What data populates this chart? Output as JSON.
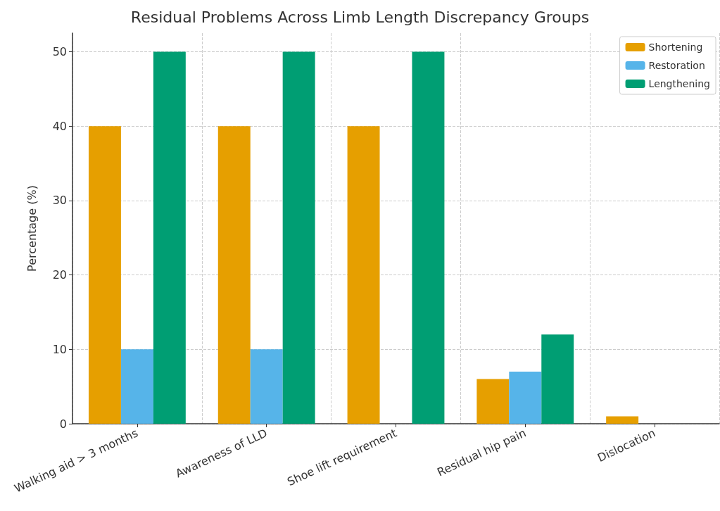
{
  "chart_data": {
    "type": "bar",
    "title": "Residual Problems Across Limb Length Discrepancy Groups",
    "ylabel": "Percentage (%)",
    "categories": [
      "Walking aid > 3 months",
      "Awareness of LLD",
      "Shoe lift requirement",
      "Residual hip pain",
      "Dislocation"
    ],
    "series": [
      {
        "name": "Shortening",
        "color": "#e69f00",
        "values": [
          40,
          40,
          40,
          6,
          1
        ]
      },
      {
        "name": "Restoration",
        "color": "#56b4e9",
        "values": [
          10,
          10,
          0,
          7,
          0
        ]
      },
      {
        "name": "Lengthening",
        "color": "#009e73",
        "values": [
          50,
          50,
          50,
          12,
          0
        ]
      }
    ],
    "ylim": [
      0,
      52.5
    ],
    "yticks": [
      0,
      10,
      20,
      30,
      40,
      50
    ],
    "grid": true,
    "legend": "top right"
  }
}
